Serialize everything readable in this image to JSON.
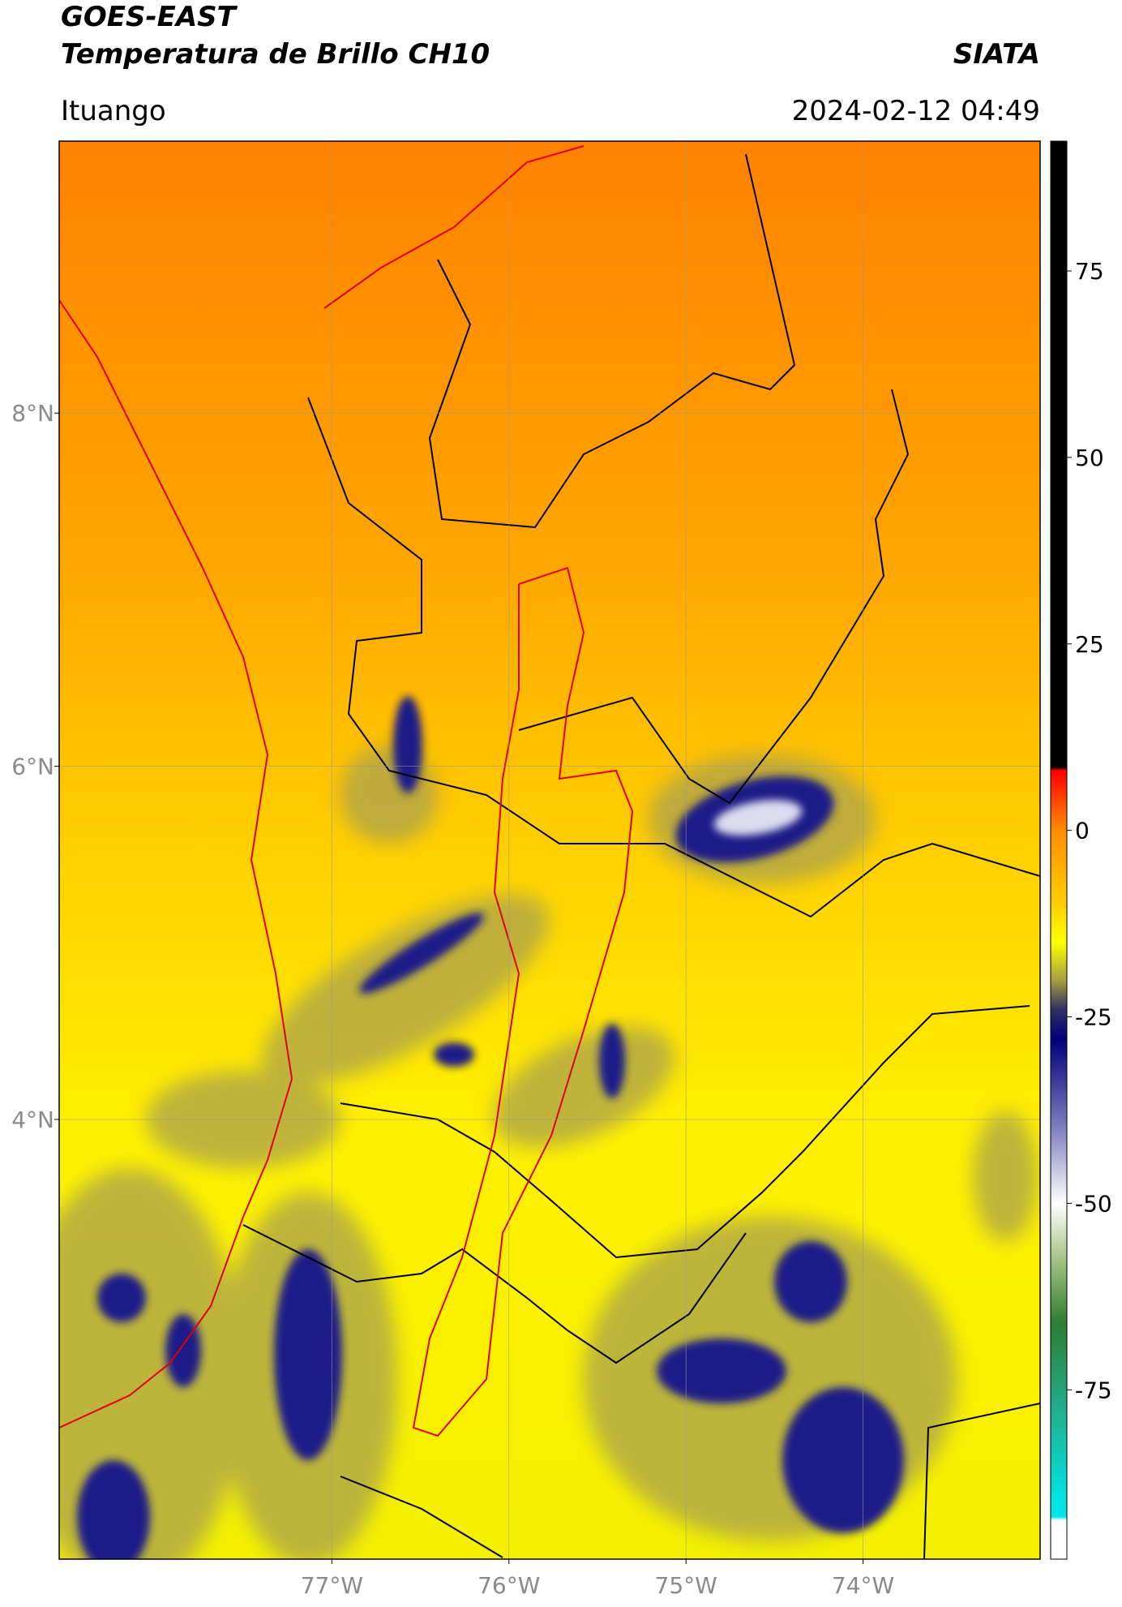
{
  "header": {
    "title": "GOES-EAST",
    "subtitle": "Temperatura de Brillo CH10",
    "source": "SIATA",
    "location": "Ituango",
    "datetime": "2024-02-12 04:49"
  },
  "map": {
    "xlim": [
      -78.54,
      -73.0
    ],
    "ylim": [
      1.51,
      9.54
    ],
    "xticks": [
      {
        "value": -77,
        "label": "77°W"
      },
      {
        "value": -76,
        "label": "76°W"
      },
      {
        "value": -75,
        "label": "75°W"
      },
      {
        "value": -74,
        "label": "74°W"
      }
    ],
    "yticks": [
      {
        "value": 8,
        "label": "8°N"
      },
      {
        "value": 6,
        "label": "6°N"
      },
      {
        "value": 4,
        "label": "4°N"
      }
    ],
    "grid": true
  },
  "colorbar": {
    "clim": [
      -97.7,
      92.4
    ],
    "ticks": [
      75,
      50,
      25,
      0,
      -25,
      -50,
      -75
    ],
    "stops": [
      {
        "value": 92.4,
        "color": "#000000"
      },
      {
        "value": 8.5,
        "color": "#000000"
      },
      {
        "value": 8,
        "color": "#ff0000"
      },
      {
        "value": 0,
        "color": "#ff8c00"
      },
      {
        "value": -10,
        "color": "#ffd000"
      },
      {
        "value": -15,
        "color": "#ffff00"
      },
      {
        "value": -20,
        "color": "#a8a040"
      },
      {
        "value": -24,
        "color": "#303060"
      },
      {
        "value": -28,
        "color": "#00007a"
      },
      {
        "value": -40,
        "color": "#8080c0"
      },
      {
        "value": -50,
        "color": "#ffffff"
      },
      {
        "value": -58,
        "color": "#a0c080"
      },
      {
        "value": -66,
        "color": "#2e7d32"
      },
      {
        "value": -78,
        "color": "#20b090"
      },
      {
        "value": -90,
        "color": "#00e5e5"
      },
      {
        "value": -92,
        "color": "#00e5e5"
      },
      {
        "value": -92.5,
        "color": "#ffffff"
      },
      {
        "value": -97.7,
        "color": "#ffffff"
      }
    ]
  }
}
